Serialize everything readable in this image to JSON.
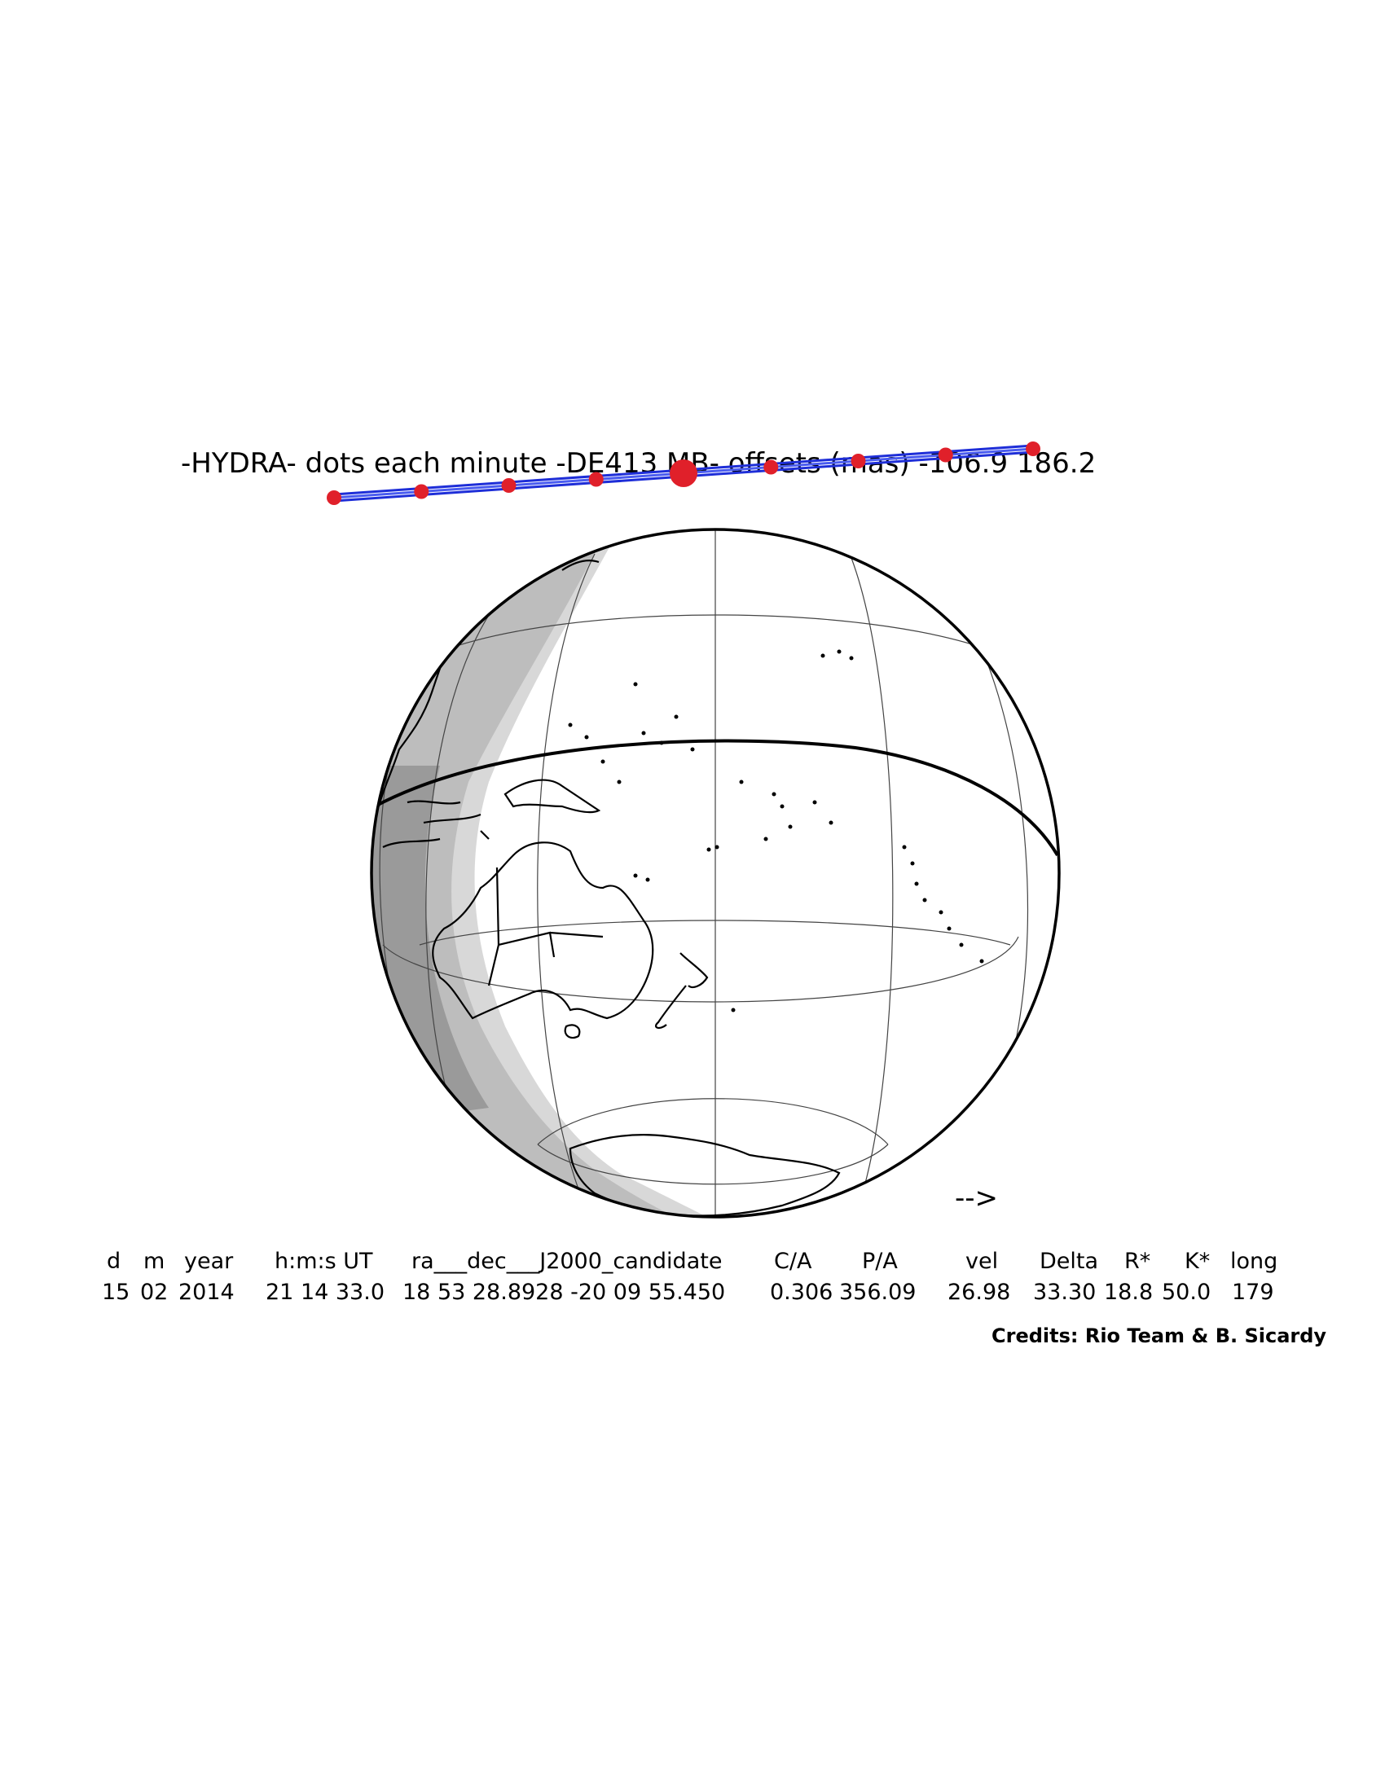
{
  "title": "-HYDRA- dots each minute -DE413 MB- offsets (mas) -106.9 186.2",
  "direction_arrow": "-->",
  "table": {
    "headers": [
      {
        "key": "d",
        "label": "d"
      },
      {
        "key": "m",
        "label": "m"
      },
      {
        "key": "year",
        "label": "year"
      },
      {
        "key": "hms",
        "label": "h:m:s UT"
      },
      {
        "key": "radec",
        "label": "ra___dec___J2000_candidate"
      },
      {
        "key": "ca",
        "label": "C/A"
      },
      {
        "key": "pa",
        "label": "P/A"
      },
      {
        "key": "vel",
        "label": "vel"
      },
      {
        "key": "delta",
        "label": "Delta"
      },
      {
        "key": "rstar",
        "label": "R*"
      },
      {
        "key": "kstar",
        "label": "K*"
      },
      {
        "key": "long",
        "label": "long"
      }
    ],
    "row": {
      "d": "15",
      "m": "02",
      "year": "2014",
      "hms": "21 14 33.0",
      "radec": "18 53 28.8928 -20 09 55.450",
      "ca": "0.306",
      "pa": "356.09",
      "vel": "26.98",
      "delta": "33.30",
      "rstar": "18.8",
      "kstar": "50.0",
      "long": "179"
    }
  },
  "credits": "Credits: Rio Team & B. Sicardy",
  "colors": {
    "shadow_path": "#1e2ed8",
    "minute_dots": "#e0202a",
    "night_light": "#d8d8d8",
    "night_mid": "#bdbdbd",
    "night_dark": "#9a9a9a",
    "coastline": "#000000"
  },
  "path": {
    "minute_dot_count": 9,
    "central_dot_index": 4
  }
}
